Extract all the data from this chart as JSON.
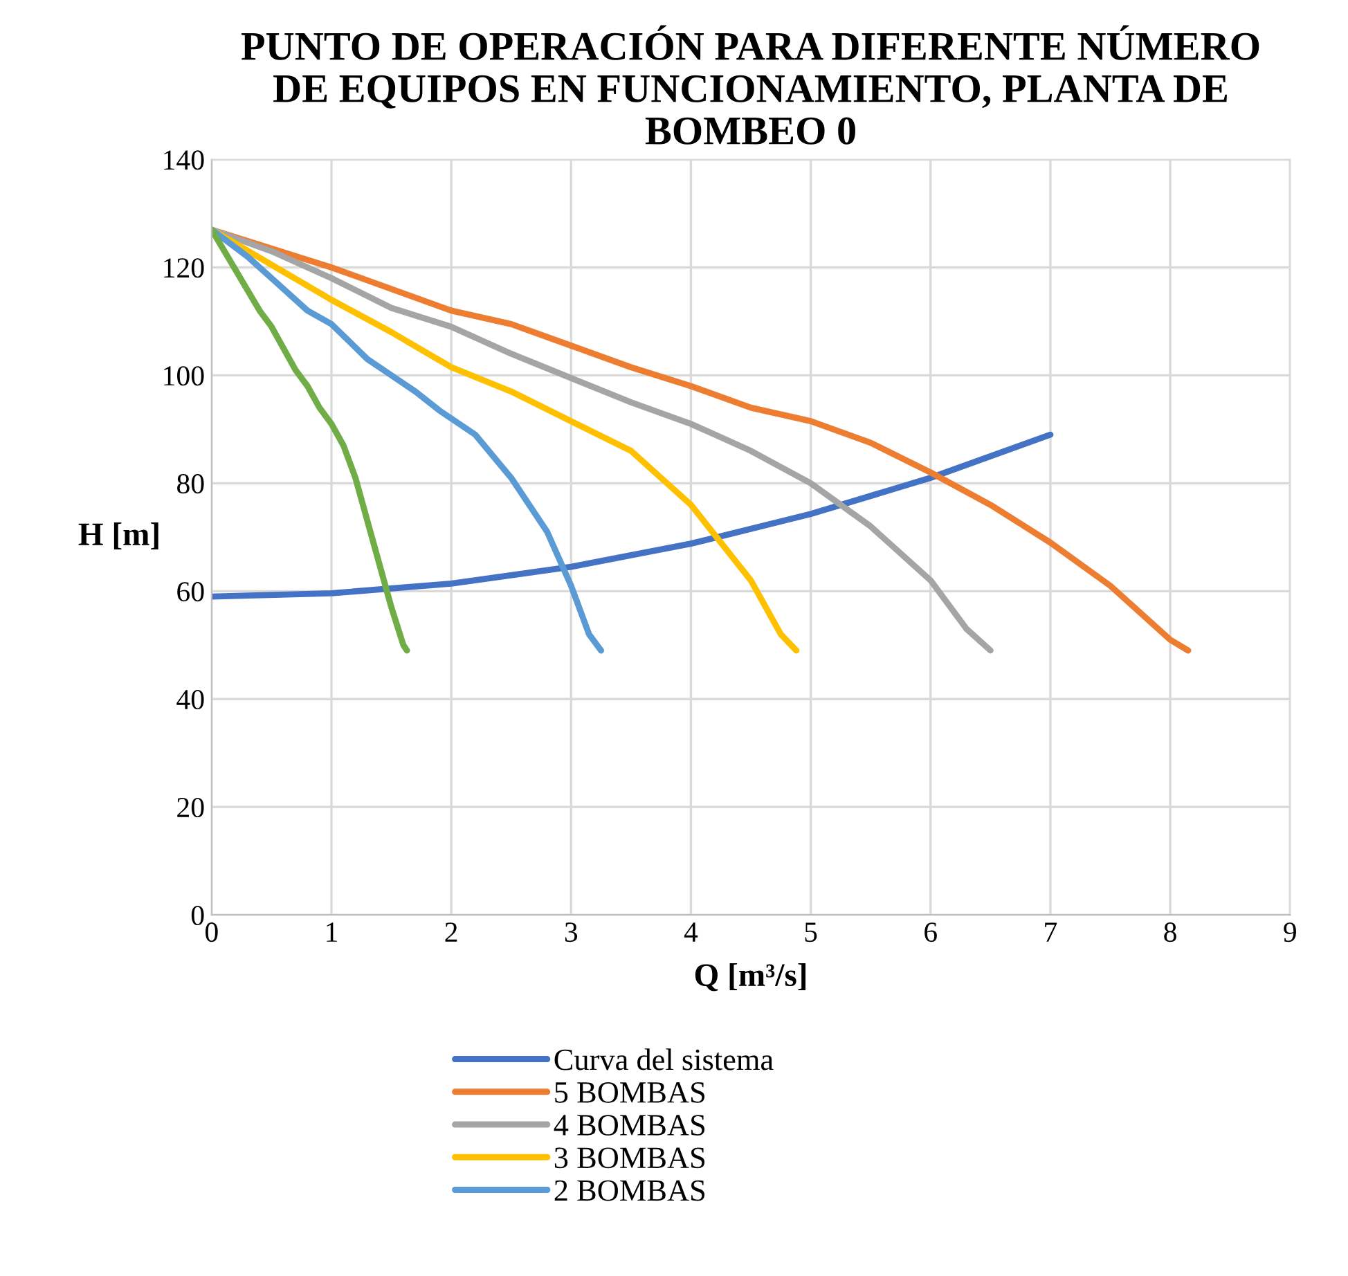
{
  "chart_data": {
    "type": "line",
    "title": "PUNTO DE OPERACIÓN PARA DIFERENTE NÚMERO\nDE EQUIPOS EN FUNCIONAMIENTO, PLANTA DE\nBOMBEO 0",
    "xlabel": "Q [m³/s]",
    "ylabel": "H [m]",
    "xlim": [
      0,
      9
    ],
    "xticks": [
      0,
      1,
      2,
      3,
      4,
      5,
      6,
      7,
      8,
      9
    ],
    "ylim": [
      0,
      140
    ],
    "yticks": [
      0,
      20,
      40,
      60,
      80,
      100,
      120,
      140
    ],
    "grid": true,
    "legend": "bottom",
    "marker": "none",
    "line_style": "solid",
    "series": [
      {
        "name": "Curva del sistema",
        "color": "#4472c4",
        "x": [
          0,
          1,
          2,
          3,
          4,
          5,
          6,
          7
        ],
        "values": [
          59,
          59.6,
          61.4,
          64.5,
          68.8,
          74.3,
          81,
          89
        ]
      },
      {
        "name": "5 BOMBAS",
        "color": "#ed7d31",
        "x": [
          0,
          1,
          2,
          2.5,
          3,
          3.5,
          4,
          4.5,
          5,
          5.5,
          6,
          6.5,
          7,
          7.5,
          8,
          8.15
        ],
        "values": [
          127,
          120,
          112,
          109.5,
          105.5,
          101.5,
          98,
          94,
          91.5,
          87.5,
          82,
          76,
          69,
          61,
          51,
          49
        ]
      },
      {
        "name": "4 BOMBAS",
        "color": "#a5a5a5",
        "x": [
          0,
          0.5,
          1,
          1.5,
          2,
          2.5,
          3,
          3.5,
          4,
          4.5,
          5,
          5.5,
          6,
          6.3,
          6.5
        ],
        "values": [
          127,
          123,
          118,
          112.5,
          109,
          104,
          99.5,
          95,
          91,
          86,
          80,
          72,
          62,
          53,
          49
        ]
      },
      {
        "name": "3 BOMBAS",
        "color": "#ffc000",
        "x": [
          0,
          0.5,
          1,
          1.5,
          2,
          2.5,
          3,
          3.5,
          4,
          4.5,
          4.75,
          4.88
        ],
        "values": [
          127,
          120.5,
          114,
          108,
          101.5,
          97,
          91.5,
          86,
          76,
          62,
          52,
          49
        ]
      },
      {
        "name": "2 BOMBAS",
        "color": "#5b9bd5",
        "x": [
          0,
          0.3,
          0.5,
          0.8,
          1,
          1.3,
          1.5,
          1.7,
          1.9,
          2.2,
          2.5,
          2.8,
          3.0,
          3.15,
          3.25
        ],
        "values": [
          127,
          122,
          118,
          112,
          109.5,
          103,
          100,
          97,
          93.5,
          89,
          81,
          71,
          61,
          52,
          49
        ]
      },
      {
        "color": "#70ad47",
        "x": [
          0,
          0.2,
          0.4,
          0.5,
          0.7,
          0.8,
          0.9,
          1.0,
          1.1,
          1.2,
          1.3,
          1.4,
          1.5,
          1.6,
          1.63
        ],
        "values": [
          127,
          119.5,
          112,
          109,
          101,
          98,
          94,
          91,
          87,
          81,
          73,
          65,
          57,
          50,
          49
        ]
      }
    ]
  }
}
